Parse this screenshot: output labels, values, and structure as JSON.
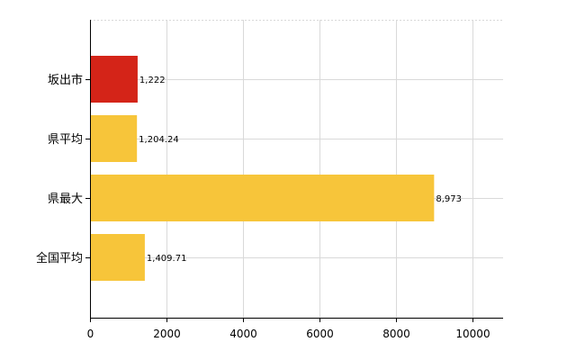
{
  "chart_data": {
    "type": "bar",
    "orientation": "horizontal",
    "categories": [
      "坂出市",
      "県平均",
      "県最大",
      "全国平均"
    ],
    "values": [
      1222,
      1204.24,
      8973,
      1409.71
    ],
    "value_labels": [
      "1,222",
      "1,204.24",
      "8,973",
      "1,409.71"
    ],
    "colors": [
      "#d42418",
      "#f7c53a",
      "#f7c53a",
      "#f7c53a"
    ],
    "x_ticks": [
      "0",
      "2000",
      "4000",
      "6000",
      "8000",
      "10000"
    ],
    "tick_values": [
      0,
      2000,
      4000,
      6000,
      8000,
      10000
    ],
    "xlim": [
      0,
      10800
    ],
    "grid": true,
    "legend": "none"
  }
}
